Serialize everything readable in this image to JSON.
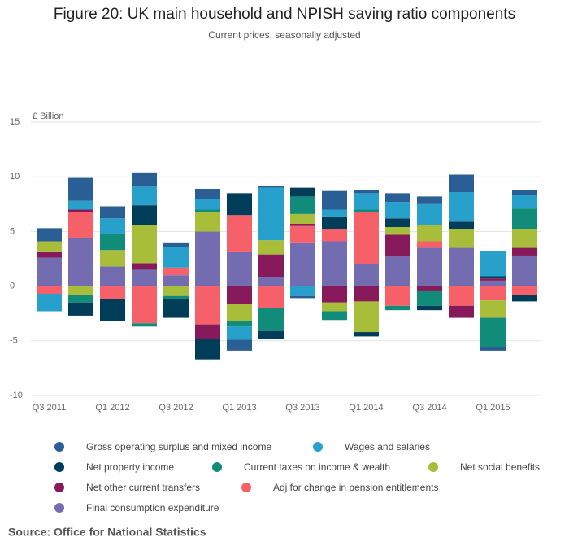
{
  "chart_data": {
    "type": "stacked-bar",
    "title": "Figure 20: UK main household and NPISH saving ratio components",
    "subtitle": "Current prices, seasonally adjusted",
    "y_label": "£ Billion",
    "source": "Source: Office for National Statistics",
    "categories": [
      "Q3 2011",
      null,
      "Q1 2012",
      null,
      "Q3 2012",
      null,
      "Q1 2013",
      null,
      "Q3 2013",
      null,
      "Q1 2014",
      null,
      "Q3 2014",
      null,
      "Q1 2015",
      null
    ],
    "ylim": [
      -10,
      15
    ],
    "yticks": [
      -10,
      -5,
      0,
      5,
      10,
      15
    ],
    "grid": true,
    "series": [
      {
        "name": "Gross operating surplus and mixed income",
        "color": "#2a5f96",
        "values": [
          1.2,
          2.1,
          1.1,
          1.3,
          0.4,
          0.9,
          -1.0,
          0.2,
          -0.2,
          1.7,
          0.3,
          0.8,
          0.7,
          1.6,
          -0.3,
          0.5
        ]
      },
      {
        "name": "Wages and salaries",
        "color": "#27a0cc",
        "values": [
          -1.6,
          0.8,
          1.4,
          1.7,
          1.9,
          1.0,
          -1.2,
          4.8,
          -0.9,
          0.7,
          1.5,
          1.5,
          1.9,
          2.7,
          2.3,
          1.2
        ]
      },
      {
        "name": "Net property income",
        "color": "#003d59",
        "values": [
          0,
          -1.2,
          -2.0,
          1.8,
          -1.7,
          -1.9,
          2.0,
          -0.7,
          0.8,
          1.1,
          -0.4,
          0.8,
          -0.4,
          0.7,
          0.2,
          -0.6
        ]
      },
      {
        "name": "Current taxes on income & wealth",
        "color": "#118c7b",
        "values": [
          0,
          -0.7,
          1.5,
          -0.3,
          -0.3,
          0.2,
          -0.5,
          -2.1,
          1.6,
          -0.8,
          0.2,
          -0.4,
          -1.4,
          0,
          -2.7,
          1.9
        ]
      },
      {
        "name": "Net social benefits",
        "color": "#a8bd3a",
        "values": [
          1.0,
          -0.8,
          1.5,
          3.5,
          -0.9,
          1.8,
          -1.6,
          1.3,
          0.9,
          -0.8,
          -2.8,
          0.7,
          1.5,
          1.7,
          -1.6,
          1.7
        ]
      },
      {
        "name": "Net other current transfers",
        "color": "#871a5b",
        "values": [
          0.5,
          0.2,
          0,
          0.6,
          0,
          -1.3,
          -1.6,
          2.1,
          0.2,
          -1.5,
          -1.4,
          2.0,
          -0.4,
          -1.1,
          0.2,
          0.7
        ]
      },
      {
        "name": "Adj for change in pension entitlements",
        "color": "#f66068",
        "values": [
          -0.7,
          2.4,
          -1.2,
          -3.4,
          0.7,
          -3.5,
          3.4,
          -2.0,
          1.5,
          1.1,
          4.8,
          -1.8,
          0.6,
          -1.8,
          -1.3,
          -0.8
        ]
      },
      {
        "name": "Final consumption expenditure",
        "color": "#746cb1",
        "values": [
          2.6,
          4.4,
          1.8,
          1.5,
          1.0,
          5.0,
          3.1,
          0.8,
          4.0,
          4.1,
          2.0,
          2.7,
          3.5,
          3.5,
          0.5,
          2.8
        ]
      }
    ]
  }
}
